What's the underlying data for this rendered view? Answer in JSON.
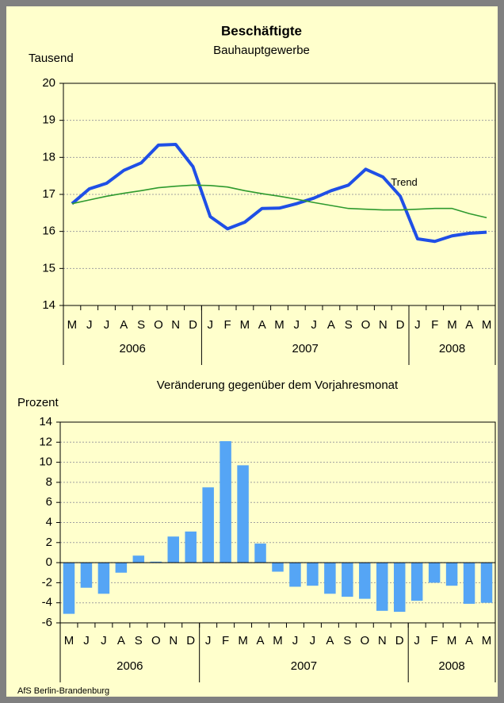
{
  "chart_data": [
    {
      "type": "line",
      "title": "Beschäftigte",
      "subtitle": "Bauhauptgewerbe",
      "y_label": "Tausend",
      "categories": [
        "M",
        "J",
        "J",
        "A",
        "S",
        "O",
        "N",
        "D",
        "J",
        "F",
        "M",
        "A",
        "M",
        "J",
        "J",
        "A",
        "S",
        "O",
        "N",
        "D",
        "J",
        "F",
        "M",
        "A",
        "M"
      ],
      "year_labels": [
        "2006",
        "2007",
        "2008"
      ],
      "series": [
        {
          "color": "#1f4fe6",
          "values": [
            16.75,
            17.15,
            17.3,
            17.65,
            17.85,
            18.33,
            18.35,
            17.75,
            16.4,
            16.07,
            16.25,
            16.62,
            16.63,
            16.75,
            16.9,
            17.1,
            17.25,
            17.68,
            17.47,
            16.95,
            15.8,
            15.73,
            15.88,
            15.95,
            15.98
          ]
        },
        {
          "name": "Trend",
          "color": "#2e9a2e",
          "values": [
            16.75,
            16.85,
            16.95,
            17.03,
            17.1,
            17.18,
            17.22,
            17.25,
            17.24,
            17.2,
            17.1,
            17.02,
            16.95,
            16.87,
            16.78,
            16.7,
            16.62,
            16.6,
            16.58,
            16.58,
            16.6,
            16.62,
            16.62,
            16.48,
            16.37
          ]
        }
      ],
      "ylim": [
        14,
        20
      ],
      "yticks": [
        14,
        15,
        16,
        17,
        18,
        19,
        20
      ],
      "grid": true
    },
    {
      "type": "bar",
      "title": "Veränderung gegenüber dem Vorjahresmonat",
      "y_label": "Prozent",
      "categories": [
        "M",
        "J",
        "J",
        "A",
        "S",
        "O",
        "N",
        "D",
        "J",
        "F",
        "M",
        "A",
        "M",
        "J",
        "J",
        "A",
        "S",
        "O",
        "N",
        "D",
        "J",
        "F",
        "M",
        "A",
        "M"
      ],
      "year_labels": [
        "2006",
        "2007",
        "2008"
      ],
      "color": "#55a5f5",
      "values": [
        -5.1,
        -2.5,
        -3.1,
        -1.0,
        0.7,
        0.1,
        2.6,
        3.1,
        7.5,
        12.1,
        9.7,
        1.9,
        -0.9,
        -2.4,
        -2.3,
        -3.1,
        -3.4,
        -3.6,
        -4.8,
        -4.9,
        -3.8,
        -2.0,
        -2.3,
        -4.1,
        -4.0
      ],
      "ylim": [
        -6,
        14
      ],
      "yticks": [
        -6,
        -4,
        -2,
        0,
        2,
        4,
        6,
        8,
        10,
        12,
        14
      ],
      "grid": true
    }
  ],
  "source": "AfS Berlin-Brandenburg"
}
